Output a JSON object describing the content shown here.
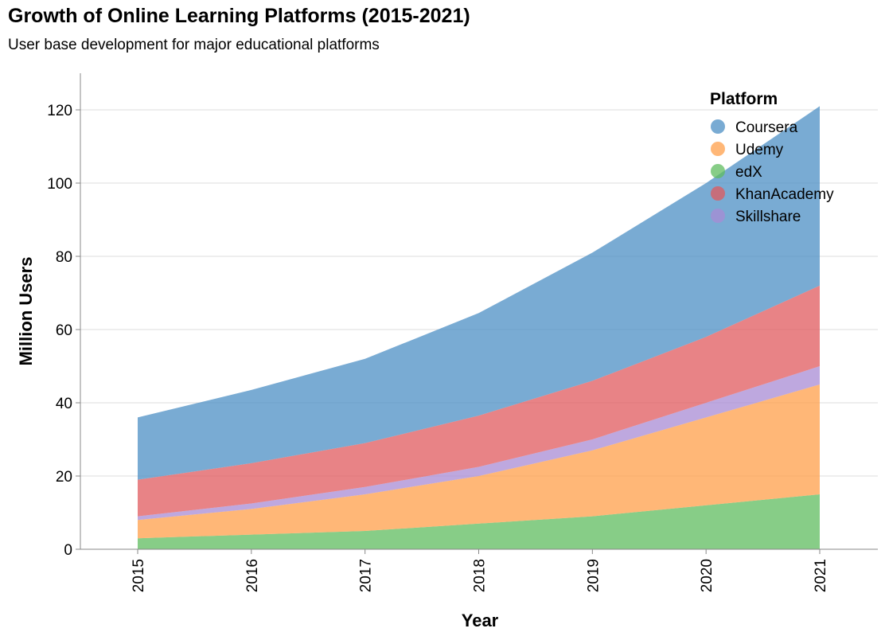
{
  "chart_data": {
    "type": "area",
    "stacked": true,
    "title": "Growth of Online Learning Platforms (2015-2021)",
    "subtitle": "User base development for major educational platforms",
    "xlabel": "Year",
    "ylabel": "Million Users",
    "x": [
      "2015",
      "2016",
      "2017",
      "2018",
      "2019",
      "2020",
      "2021"
    ],
    "ylim": [
      0,
      130
    ],
    "yticks": [
      0,
      20,
      40,
      60,
      80,
      100,
      120
    ],
    "grid": true,
    "legend": {
      "title": "Platform",
      "position": "top-right"
    },
    "series": [
      {
        "name": "Coursera",
        "color": "#4c8fc4",
        "values": [
          17,
          20,
          23,
          28,
          35,
          42,
          49
        ]
      },
      {
        "name": "Udemy",
        "color": "#ff9f4a",
        "values": [
          5,
          7,
          10,
          13,
          18,
          24,
          30
        ]
      },
      {
        "name": "edX",
        "color": "#5fbc5f",
        "values": [
          3,
          4,
          5,
          7,
          9,
          12,
          15
        ]
      },
      {
        "name": "KhanAcademy",
        "color": "#e05a5e",
        "values": [
          10,
          11,
          12,
          14,
          16,
          18,
          22
        ]
      },
      {
        "name": "Skillshare",
        "color": "#a88bd4",
        "values": [
          1,
          1.5,
          2,
          2.5,
          3,
          4,
          5
        ]
      }
    ],
    "stack_order": [
      "edX",
      "Udemy",
      "Skillshare",
      "KhanAcademy",
      "Coursera"
    ]
  }
}
